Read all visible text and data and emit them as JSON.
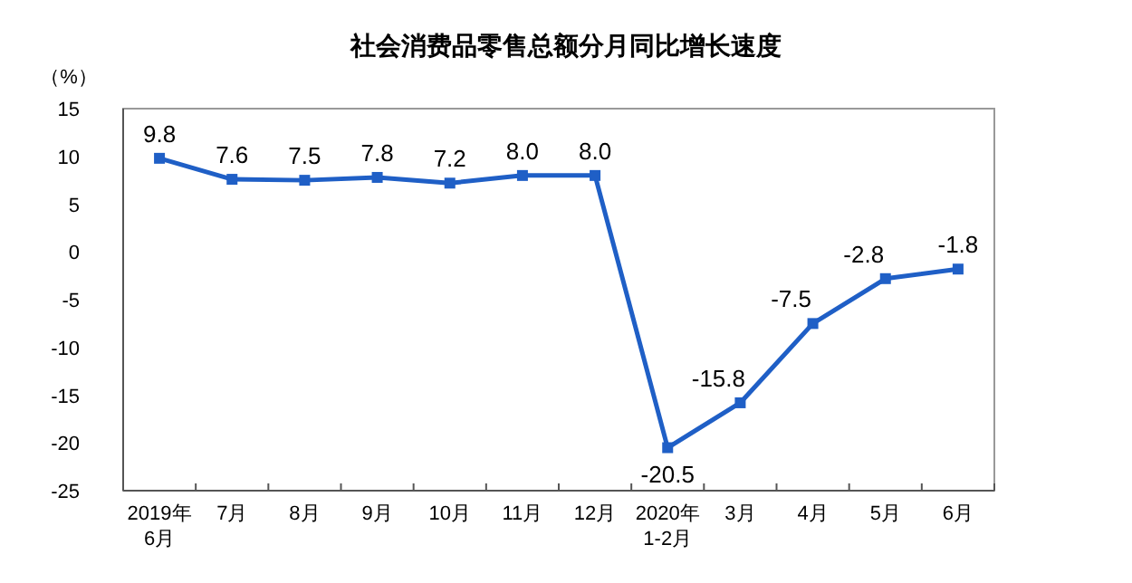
{
  "chart_data": {
    "type": "line",
    "title": "社会消费品零售总额分月同比增长速度",
    "ylabel": "（%）",
    "categories": [
      "2019年\n6月",
      "7月",
      "8月",
      "9月",
      "10月",
      "11月",
      "12月",
      "2020年\n1-2月",
      "3月",
      "4月",
      "5月",
      "6月"
    ],
    "series": [
      {
        "color": "#1f5fc6",
        "values": [
          9.8,
          7.6,
          7.5,
          7.8,
          7.2,
          8.0,
          8.0,
          -20.5,
          -15.8,
          -7.5,
          -2.8,
          -1.8
        ],
        "value_labels": [
          "9.8",
          "7.6",
          "7.5",
          "7.8",
          "7.2",
          "8.0",
          "8.0",
          "-20.5",
          "-15.8",
          "-7.5",
          "-2.8",
          "-1.8"
        ]
      }
    ],
    "ylim": [
      -25,
      15
    ],
    "yticks": [
      -25,
      -20,
      -15,
      -10,
      -5,
      0,
      5,
      10,
      15
    ],
    "marker": "square",
    "grid": false
  }
}
